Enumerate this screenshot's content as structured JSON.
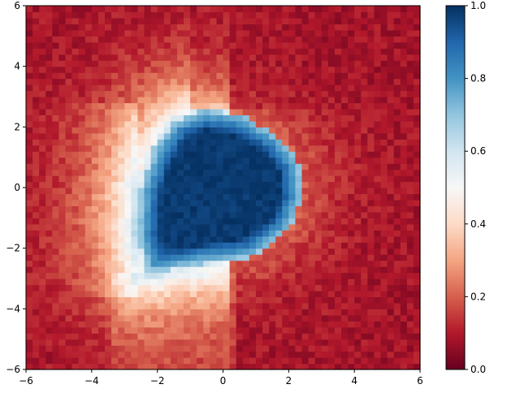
{
  "chart_data": {
    "type": "heatmap",
    "title": "",
    "xlabel": "",
    "ylabel": "",
    "xlim": [
      -6,
      6
    ],
    "ylim": [
      -6,
      6
    ],
    "grid": false,
    "colormap": "RdBu",
    "colormap_stops": [
      "#67001f",
      "#b2182b",
      "#d6604d",
      "#f4a582",
      "#fddbc7",
      "#f7f7f7",
      "#d1e5f0",
      "#92c5de",
      "#4393c3",
      "#2166ac",
      "#053061"
    ],
    "x_ticks": [
      "−6",
      "−4",
      "−2",
      "0",
      "2",
      "4",
      "6"
    ],
    "x_tick_values": [
      -6,
      -4,
      -2,
      0,
      2,
      4,
      6
    ],
    "y_ticks": [
      "−6",
      "−4",
      "−2",
      "0",
      "2",
      "4",
      "6"
    ],
    "y_tick_values": [
      -6,
      -4,
      -2,
      0,
      2,
      4,
      6
    ],
    "colorbar": {
      "range": [
        0.0,
        1.0
      ],
      "ticks": [
        "0.0",
        "0.2",
        "0.4",
        "0.6",
        "0.8",
        "1.0"
      ],
      "tick_values": [
        0.0,
        0.2,
        0.4,
        0.6,
        0.8,
        1.0
      ]
    },
    "grid_size": [
      60,
      60
    ],
    "region": {
      "description_values": "value ≈ 1.0 inside region; ~0.2–0.5 halo on left; ~0.05 elsewhere",
      "polygon": [
        [
          -2.3,
          -2.8
        ],
        [
          -2.6,
          -1.5
        ],
        [
          -2.5,
          0.0
        ],
        [
          -2.1,
          1.3
        ],
        [
          -1.5,
          2.2
        ],
        [
          -0.6,
          2.6
        ],
        [
          0.6,
          2.4
        ],
        [
          1.7,
          1.7
        ],
        [
          2.35,
          0.8
        ],
        [
          2.4,
          -0.4
        ],
        [
          2.0,
          -1.4
        ],
        [
          0.9,
          -2.3
        ],
        [
          -0.5,
          -2.5
        ]
      ]
    }
  }
}
